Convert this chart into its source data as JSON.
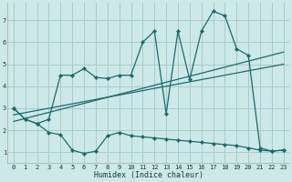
{
  "title": "",
  "xlabel": "Humidex (Indice chaleur)",
  "background_color": "#cce8e8",
  "grid_color": "#aacccc",
  "line_color": "#1a6b6b",
  "xlim": [
    -0.5,
    23.5
  ],
  "ylim": [
    0.5,
    7.8
  ],
  "xticks": [
    0,
    1,
    2,
    3,
    4,
    5,
    6,
    7,
    8,
    9,
    10,
    11,
    12,
    13,
    14,
    15,
    16,
    17,
    18,
    19,
    20,
    21,
    22,
    23
  ],
  "yticks": [
    1,
    2,
    3,
    4,
    5,
    6,
    7
  ],
  "series1_x": [
    0,
    1,
    2,
    3,
    4,
    5,
    6,
    7,
    8,
    9,
    10,
    11,
    12,
    13,
    14,
    15,
    16,
    17,
    18,
    19,
    20,
    21,
    22,
    23
  ],
  "series1_y": [
    3.0,
    2.5,
    2.3,
    1.9,
    1.8,
    1.1,
    0.95,
    1.05,
    1.75,
    1.9,
    1.75,
    1.7,
    1.65,
    1.6,
    1.55,
    1.5,
    1.45,
    1.4,
    1.35,
    1.3,
    1.2,
    1.1,
    1.05,
    1.1
  ],
  "series2_x": [
    0,
    1,
    2,
    3,
    4,
    5,
    6,
    7,
    8,
    9,
    10,
    11,
    12,
    13,
    14,
    15,
    16,
    17,
    18,
    19,
    20,
    21,
    22,
    23
  ],
  "series2_y": [
    3.0,
    2.5,
    2.3,
    2.5,
    4.5,
    4.5,
    4.8,
    4.4,
    4.35,
    4.5,
    4.5,
    6.0,
    6.5,
    2.75,
    6.5,
    4.3,
    6.5,
    7.4,
    7.2,
    5.7,
    5.4,
    1.2,
    1.05,
    1.1
  ],
  "trend1_x": [
    0,
    23
  ],
  "trend1_y": [
    2.7,
    5.0
  ],
  "trend2_x": [
    0,
    23
  ],
  "trend2_y": [
    2.4,
    5.55
  ]
}
